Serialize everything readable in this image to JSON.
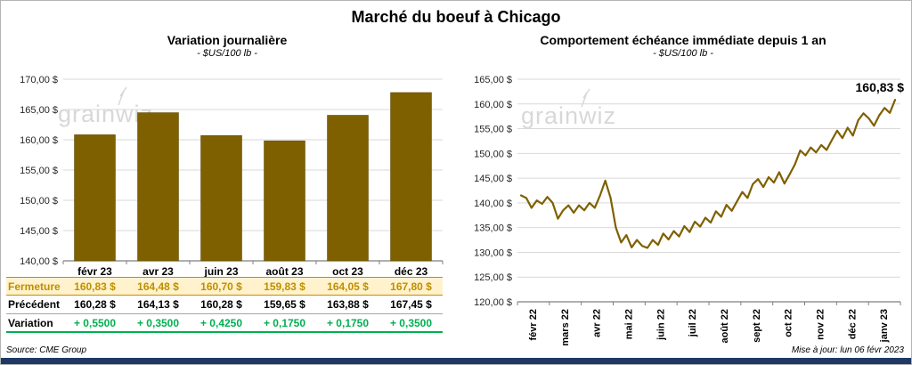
{
  "header": {
    "title": "Marché du boeuf à Chicago"
  },
  "watermark": {
    "text": "grainwiz"
  },
  "footer": {
    "source": "Source: CME Group",
    "updated": "Mise à jour: lun 06 févr 2023"
  },
  "colors": {
    "accent": "#7F6000",
    "grid": "#D9D9D9",
    "axis": "#7F7F7F",
    "fermeture_bg": "#FFF2CC",
    "fermeture_text": "#BF8F00",
    "variation_text": "#00B050",
    "watermark": "#D8D8D8",
    "bottom_bar": "#1F3864"
  },
  "left_table": {
    "rows": [
      {
        "key": "fermeture",
        "label": "Fermeture",
        "values": [
          "160,83  $",
          "164,48  $",
          "160,70  $",
          "159,83  $",
          "164,05  $",
          "167,80  $"
        ]
      },
      {
        "key": "precedent",
        "label": "Précédent",
        "values": [
          "160,28  $",
          "164,13  $",
          "160,28  $",
          "159,65  $",
          "163,88  $",
          "167,45  $"
        ]
      },
      {
        "key": "variation",
        "label": "Variation",
        "values": [
          "+ 0,5500",
          "+ 0,3500",
          "+ 0,4250",
          "+ 0,1750",
          "+ 0,1750",
          "+ 0,3500"
        ]
      }
    ]
  },
  "chart_data": [
    {
      "type": "bar",
      "title": "Variation  journalière",
      "subtitle": "- $US/100 lb -",
      "categories": [
        "févr 23",
        "avr 23",
        "juin 23",
        "août 23",
        "oct 23",
        "déc 23"
      ],
      "values": [
        160.83,
        164.48,
        160.7,
        159.83,
        164.05,
        167.8
      ],
      "ylim": [
        140,
        170
      ],
      "ytick_step": 5,
      "ylabel": "$US/100 lb",
      "bar_color": "#7F6000",
      "grid": true,
      "legend": "none"
    },
    {
      "type": "line",
      "title": "Comportement  échéance  immédiate  depuis 1 an",
      "subtitle": "- $US/100 lb -",
      "x_labels": [
        "févr 22",
        "mars 22",
        "avr 22",
        "mai 22",
        "juin 22",
        "juil 22",
        "août 22",
        "sept 22",
        "oct 22",
        "nov 22",
        "déc 22",
        "janv 23"
      ],
      "values": [
        141.5,
        141.0,
        139.0,
        140.5,
        139.8,
        141.2,
        140.0,
        136.8,
        138.5,
        139.5,
        138.0,
        139.5,
        138.5,
        140.0,
        139.0,
        141.5,
        144.5,
        141.0,
        135.0,
        132.0,
        133.5,
        131.0,
        132.5,
        131.3,
        130.9,
        132.5,
        131.5,
        133.8,
        132.6,
        134.3,
        133.2,
        135.3,
        134.1,
        136.2,
        135.2,
        137.0,
        136.0,
        138.3,
        137.2,
        139.6,
        138.4,
        140.3,
        142.2,
        141.0,
        143.8,
        144.8,
        143.2,
        145.2,
        144.1,
        146.2,
        143.9,
        145.8,
        147.8,
        150.6,
        149.6,
        151.2,
        150.2,
        151.7,
        150.7,
        152.7,
        154.6,
        153.1,
        155.2,
        153.6,
        156.7,
        158.1,
        157.1,
        155.6,
        157.7,
        159.2,
        158.2,
        160.83
      ],
      "ylim": [
        120,
        165
      ],
      "ytick_step": 5,
      "ylabel": "$US/100 lb",
      "line_color": "#7F6000",
      "annotation": "160,83 $",
      "grid": true,
      "legend": "none"
    }
  ]
}
